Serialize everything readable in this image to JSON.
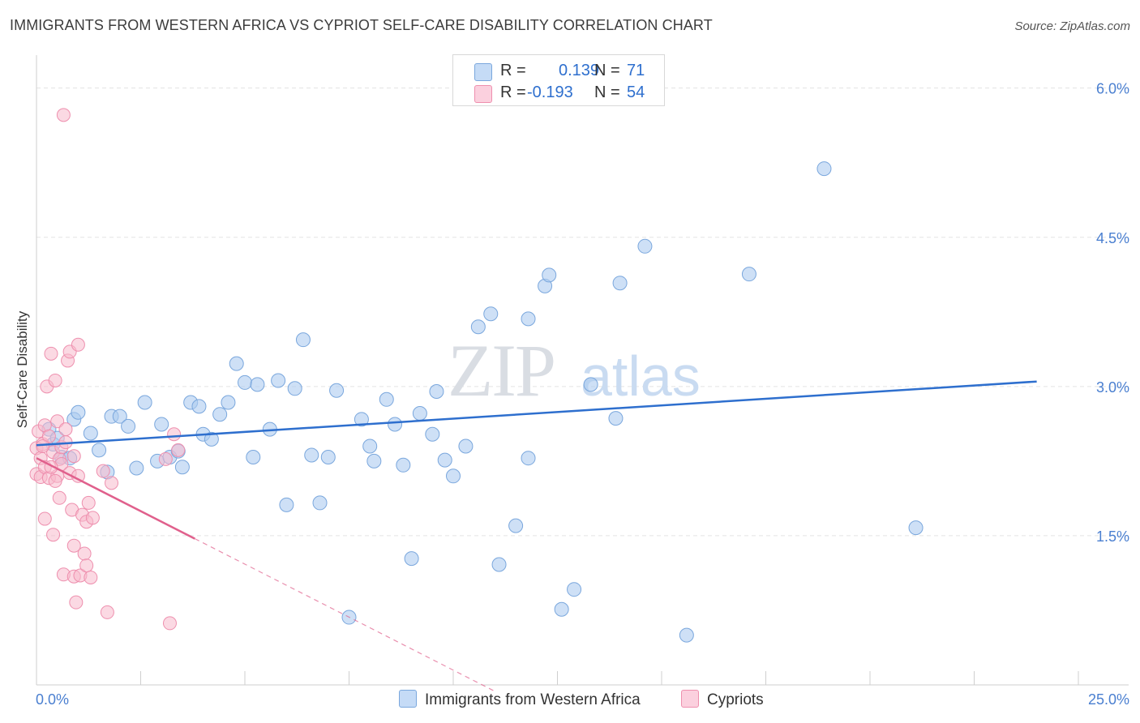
{
  "header": {
    "title": "IMMIGRANTS FROM WESTERN AFRICA VS CYPRIOT SELF-CARE DISABILITY CORRELATION CHART",
    "source": "Source: ZipAtlas.com"
  },
  "watermark": {
    "zip": "ZIP",
    "atlas": "atlas"
  },
  "legend": {
    "r_label": "R =",
    "n_label": "N =",
    "series1": {
      "r": "0.139",
      "n": "71"
    },
    "series2": {
      "r": "-0.193",
      "n": "54"
    }
  },
  "colors": {
    "blue_fill": "#aecbf0",
    "blue_stroke": "#7aa7dd",
    "blue_line": "#2e6fce",
    "pink_fill": "#f7b9cc",
    "pink_stroke": "#ee8fae",
    "pink_line": "#e0608c",
    "tick_label": "#4a7fd0"
  },
  "chart_data": {
    "type": "scatter",
    "title": "IMMIGRANTS FROM WESTERN AFRICA VS CYPRIOT SELF-CARE DISABILITY CORRELATION CHART",
    "xlabel": "",
    "ylabel": "Self-Care Disability",
    "xlim": [
      0,
      25
    ],
    "ylim": [
      0,
      6.25
    ],
    "x_tick_labels": [
      "0.0%",
      "25.0%"
    ],
    "y_ticks": [
      1.5,
      3.0,
      4.5,
      6.0
    ],
    "y_tick_labels": [
      "1.5%",
      "3.0%",
      "4.5%",
      "6.0%"
    ],
    "series": [
      {
        "name": "Immigrants from Western Africa",
        "r": 0.139,
        "n": 71,
        "trend": {
          "x0": 0,
          "y0": 2.41,
          "x1": 24,
          "y1": 3.05,
          "dashed_to": 24
        },
        "points": [
          [
            0.3,
            2.57
          ],
          [
            0.4,
            2.42
          ],
          [
            0.5,
            2.48
          ],
          [
            0.6,
            2.29
          ],
          [
            0.8,
            2.28
          ],
          [
            0.9,
            2.67
          ],
          [
            1.0,
            2.74
          ],
          [
            1.3,
            2.53
          ],
          [
            1.5,
            2.36
          ],
          [
            1.7,
            2.14
          ],
          [
            1.8,
            2.7
          ],
          [
            2.0,
            2.7
          ],
          [
            2.2,
            2.6
          ],
          [
            2.4,
            2.18
          ],
          [
            2.6,
            2.84
          ],
          [
            2.9,
            2.25
          ],
          [
            3.0,
            2.62
          ],
          [
            3.2,
            2.29
          ],
          [
            3.4,
            2.35
          ],
          [
            3.5,
            2.19
          ],
          [
            3.7,
            2.84
          ],
          [
            3.9,
            2.8
          ],
          [
            4.0,
            2.52
          ],
          [
            4.2,
            2.47
          ],
          [
            4.4,
            2.72
          ],
          [
            4.6,
            2.84
          ],
          [
            4.8,
            3.23
          ],
          [
            5.0,
            3.04
          ],
          [
            5.2,
            2.29
          ],
          [
            5.3,
            3.02
          ],
          [
            5.6,
            2.57
          ],
          [
            5.8,
            3.06
          ],
          [
            6.0,
            1.81
          ],
          [
            6.2,
            2.98
          ],
          [
            6.4,
            3.47
          ],
          [
            6.6,
            2.31
          ],
          [
            6.8,
            1.83
          ],
          [
            7.0,
            2.29
          ],
          [
            7.2,
            2.96
          ],
          [
            7.5,
            0.68
          ],
          [
            7.8,
            2.67
          ],
          [
            8.0,
            2.4
          ],
          [
            8.1,
            2.25
          ],
          [
            8.4,
            2.87
          ],
          [
            8.6,
            2.62
          ],
          [
            8.8,
            2.21
          ],
          [
            9.0,
            1.27
          ],
          [
            9.2,
            2.73
          ],
          [
            9.5,
            2.52
          ],
          [
            9.6,
            2.95
          ],
          [
            9.8,
            2.26
          ],
          [
            10.0,
            2.1
          ],
          [
            10.3,
            2.4
          ],
          [
            10.6,
            3.6
          ],
          [
            10.9,
            3.73
          ],
          [
            11.1,
            1.21
          ],
          [
            11.5,
            1.6
          ],
          [
            11.8,
            3.68
          ],
          [
            11.8,
            2.28
          ],
          [
            12.2,
            4.01
          ],
          [
            12.3,
            4.12
          ],
          [
            12.6,
            0.76
          ],
          [
            12.9,
            0.96
          ],
          [
            13.3,
            3.02
          ],
          [
            13.9,
            2.68
          ],
          [
            14.0,
            4.04
          ],
          [
            14.6,
            4.41
          ],
          [
            15.6,
            0.5
          ],
          [
            17.1,
            4.13
          ],
          [
            18.9,
            5.19
          ],
          [
            21.1,
            1.58
          ]
        ]
      },
      {
        "name": "Cypriots",
        "r": -0.193,
        "n": 54,
        "trend": {
          "x0": 0,
          "y0": 2.28,
          "x1": 3.8,
          "y1": 1.47,
          "dashed_to": 11
        },
        "points": [
          [
            0.0,
            2.38
          ],
          [
            0.0,
            2.12
          ],
          [
            0.05,
            2.55
          ],
          [
            0.1,
            2.28
          ],
          [
            0.1,
            2.09
          ],
          [
            0.15,
            2.42
          ],
          [
            0.2,
            2.19
          ],
          [
            0.2,
            2.61
          ],
          [
            0.2,
            1.67
          ],
          [
            0.25,
            3.0
          ],
          [
            0.3,
            2.08
          ],
          [
            0.3,
            2.5
          ],
          [
            0.35,
            3.33
          ],
          [
            0.4,
            2.34
          ],
          [
            0.4,
            1.51
          ],
          [
            0.45,
            3.06
          ],
          [
            0.5,
            2.1
          ],
          [
            0.5,
            2.65
          ],
          [
            0.55,
            1.88
          ],
          [
            0.55,
            2.27
          ],
          [
            0.6,
            2.39
          ],
          [
            0.6,
            2.22
          ],
          [
            0.65,
            1.11
          ],
          [
            0.7,
            2.57
          ],
          [
            0.75,
            3.26
          ],
          [
            0.8,
            3.35
          ],
          [
            0.8,
            2.13
          ],
          [
            0.85,
            1.76
          ],
          [
            0.9,
            1.4
          ],
          [
            0.9,
            1.09
          ],
          [
            0.95,
            0.83
          ],
          [
            1.0,
            3.42
          ],
          [
            1.0,
            2.1
          ],
          [
            1.05,
            1.1
          ],
          [
            1.1,
            1.71
          ],
          [
            1.15,
            1.32
          ],
          [
            1.2,
            1.64
          ],
          [
            1.2,
            1.2
          ],
          [
            1.25,
            1.83
          ],
          [
            1.3,
            1.08
          ],
          [
            1.35,
            1.68
          ],
          [
            1.6,
            2.15
          ],
          [
            1.7,
            0.73
          ],
          [
            1.8,
            2.03
          ],
          [
            3.1,
            2.27
          ],
          [
            3.2,
            0.62
          ],
          [
            3.3,
            2.52
          ],
          [
            3.4,
            2.36
          ],
          [
            0.65,
            5.73
          ],
          [
            0.15,
            2.4
          ],
          [
            0.35,
            2.19
          ],
          [
            0.45,
            2.05
          ],
          [
            0.7,
            2.44
          ],
          [
            0.9,
            2.3
          ]
        ]
      }
    ]
  }
}
